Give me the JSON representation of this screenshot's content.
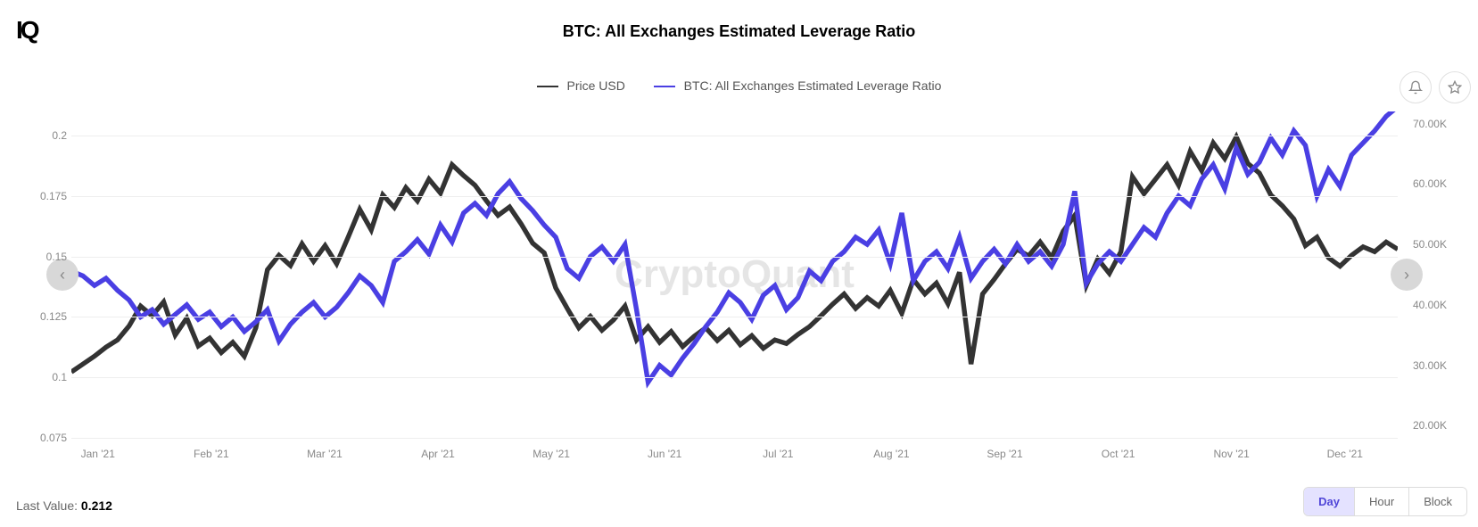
{
  "logo": "IQ",
  "title": "BTC: All Exchanges Estimated Leverage Ratio",
  "watermark": "CryptoQuant",
  "legend": [
    {
      "label": "Price USD",
      "color": "#333333"
    },
    {
      "label": "BTC: All Exchanges Estimated Leverage Ratio",
      "color": "#4a3fe3"
    }
  ],
  "chart": {
    "type": "line",
    "left_axis": {
      "min": 0.075,
      "max": 0.21,
      "ticks": [
        0.075,
        0.1,
        0.125,
        0.15,
        0.175,
        0.2
      ]
    },
    "right_axis": {
      "min": 18000,
      "max": 72000,
      "ticks": [
        "20.00K",
        "30.00K",
        "40.00K",
        "50.00K",
        "60.00K",
        "70.00K"
      ],
      "tick_values": [
        20000,
        30000,
        40000,
        50000,
        60000,
        70000
      ]
    },
    "x_labels": [
      "Jan '21",
      "Feb '21",
      "Mar '21",
      "Apr '21",
      "May '21",
      "Jun '21",
      "Jul '21",
      "Aug '21",
      "Sep '21",
      "Oct '21",
      "Nov '21",
      "Dec '21"
    ],
    "background_color": "#ffffff",
    "grid_color": "#eeeeee",
    "line_width": 1.8,
    "series": [
      {
        "name": "price_usd",
        "axis": "right",
        "color": "#333333",
        "values": [
          28900,
          30200,
          31500,
          33000,
          34200,
          36500,
          39800,
          38200,
          40500,
          35000,
          37800,
          33200,
          34500,
          32100,
          33800,
          31500,
          36200,
          45800,
          48200,
          46500,
          50100,
          47200,
          49800,
          46800,
          51200,
          55800,
          52400,
          58200,
          56100,
          59400,
          57200,
          60800,
          58500,
          63200,
          61400,
          59800,
          57200,
          54800,
          56200,
          53400,
          50200,
          48600,
          42800,
          39400,
          36200,
          38100,
          35800,
          37500,
          39800,
          34200,
          36400,
          33800,
          35600,
          33100,
          34800,
          36200,
          34100,
          35800,
          33400,
          34900,
          32800,
          34200,
          33600,
          35100,
          36400,
          38200,
          40100,
          41800,
          39400,
          41200,
          39800,
          42400,
          38600,
          44200,
          41800,
          43600,
          40200,
          45400,
          30200,
          41800,
          44200,
          46800,
          49200,
          48100,
          50400,
          47800,
          52200,
          54800,
          43200,
          47600,
          45200,
          48800,
          61200,
          58400,
          60800,
          63200,
          59800,
          65400,
          62200,
          66800,
          64200,
          67800,
          63400,
          61800,
          58200,
          56400,
          54200,
          49800,
          51200,
          47800,
          46400,
          48200,
          49600,
          48800,
          50400,
          49200
        ]
      },
      {
        "name": "leverage_ratio",
        "axis": "left",
        "color": "#4a3fe3",
        "values": [
          0.144,
          0.142,
          0.138,
          0.141,
          0.136,
          0.132,
          0.125,
          0.128,
          0.122,
          0.126,
          0.13,
          0.124,
          0.127,
          0.121,
          0.125,
          0.119,
          0.123,
          0.128,
          0.115,
          0.122,
          0.127,
          0.131,
          0.125,
          0.129,
          0.135,
          0.142,
          0.138,
          0.131,
          0.148,
          0.152,
          0.157,
          0.151,
          0.163,
          0.156,
          0.168,
          0.172,
          0.167,
          0.176,
          0.181,
          0.174,
          0.169,
          0.163,
          0.158,
          0.145,
          0.141,
          0.15,
          0.154,
          0.148,
          0.155,
          0.128,
          0.098,
          0.105,
          0.101,
          0.108,
          0.114,
          0.121,
          0.127,
          0.135,
          0.131,
          0.124,
          0.134,
          0.138,
          0.128,
          0.133,
          0.144,
          0.14,
          0.148,
          0.152,
          0.158,
          0.155,
          0.161,
          0.147,
          0.168,
          0.14,
          0.148,
          0.152,
          0.145,
          0.158,
          0.141,
          0.148,
          0.153,
          0.147,
          0.155,
          0.148,
          0.152,
          0.146,
          0.155,
          0.177,
          0.139,
          0.147,
          0.152,
          0.148,
          0.155,
          0.162,
          0.158,
          0.168,
          0.175,
          0.171,
          0.182,
          0.188,
          0.178,
          0.195,
          0.184,
          0.189,
          0.199,
          0.192,
          0.202,
          0.196,
          0.175,
          0.186,
          0.179,
          0.192,
          0.197,
          0.202,
          0.208,
          0.212
        ]
      }
    ]
  },
  "last_value": {
    "label": "Last Value: ",
    "value": "0.212"
  },
  "time_buttons": [
    {
      "label": "Day",
      "active": true
    },
    {
      "label": "Hour",
      "active": false
    },
    {
      "label": "Block",
      "active": false
    }
  ]
}
